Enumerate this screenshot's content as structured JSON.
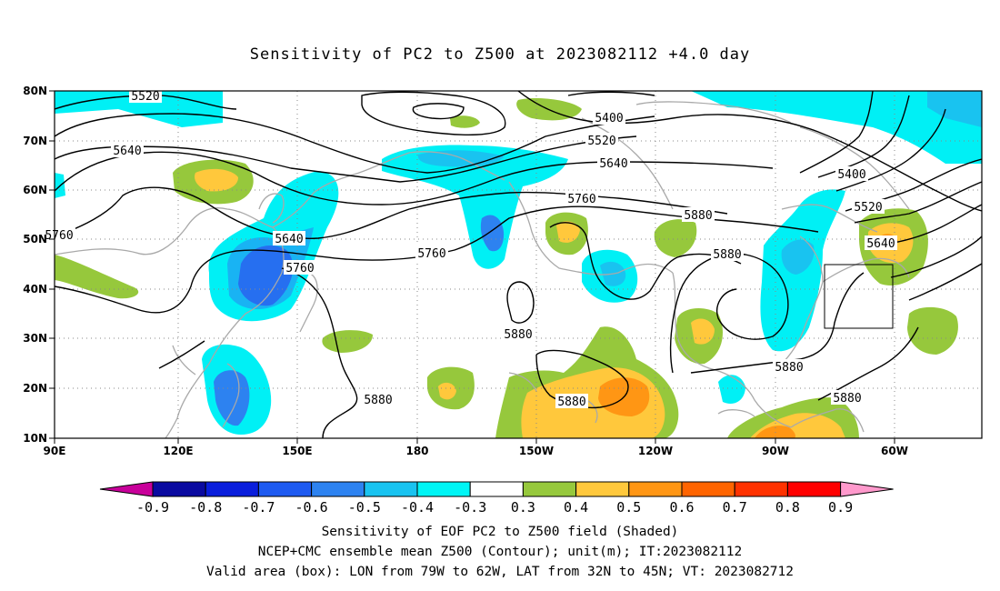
{
  "title": "Sensitivity of PC2 to Z500 at 2023082112 +4.0 day",
  "lat_labels": [
    "80N",
    "70N",
    "60N",
    "50N",
    "40N",
    "30N",
    "20N",
    "10N"
  ],
  "lon_labels": [
    "90E",
    "120E",
    "150E",
    "180",
    "150W",
    "120W",
    "90W",
    "60W"
  ],
  "contour_labels": [
    "5520",
    "5400",
    "5520",
    "5640",
    "5400",
    "5520",
    "5640",
    "5760",
    "5640",
    "5760",
    "5880",
    "5640",
    "5760",
    "5880",
    "5880",
    "5880",
    "5880",
    "5880",
    "5880",
    "5760"
  ],
  "colorbar": {
    "ticks": [
      "-0.9",
      "-0.8",
      "-0.7",
      "-0.6",
      "-0.5",
      "-0.4",
      "-0.3",
      "0.3",
      "0.4",
      "0.5",
      "0.6",
      "0.7",
      "0.8",
      "0.9"
    ],
    "colors": [
      "#c8009a",
      "#0a0aa0",
      "#0a1edc",
      "#1e5af0",
      "#2d82f0",
      "#19c3f0",
      "#00f5f5",
      "#ffffff",
      "#96c83c",
      "#ffc83c",
      "#ff9614",
      "#ff6400",
      "#ff3200",
      "#ff0000",
      "#ff99cc"
    ]
  },
  "shading": {
    "negative": "#00f0f5",
    "positive": "#96c83c"
  },
  "box": {
    "lon_w": "79W",
    "lon_e": "62W",
    "lat_s": "32N",
    "lat_n": "45N"
  },
  "footer": {
    "line1": "Sensitivity of EOF PC2 to Z500 field (Shaded)",
    "line2": "NCEP+CMC ensemble mean Z500 (Contour); unit(m); IT:2023082112",
    "line3": "Valid area (box): LON from 79W to 62W, LAT from 32N to 45N; VT: 2023082712"
  }
}
